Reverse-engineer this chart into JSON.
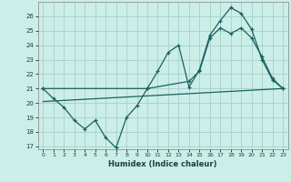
{
  "xlabel": "Humidex (Indice chaleur)",
  "bg_color": "#cceee8",
  "grid_color": "#aad4cc",
  "line_color": "#1a6060",
  "xlim": [
    -0.5,
    23.5
  ],
  "ylim": [
    16.8,
    27.0
  ],
  "xticks": [
    0,
    1,
    2,
    3,
    4,
    5,
    6,
    7,
    8,
    9,
    10,
    11,
    12,
    13,
    14,
    15,
    16,
    17,
    18,
    19,
    20,
    21,
    22,
    23
  ],
  "yticks": [
    17,
    18,
    19,
    20,
    21,
    22,
    23,
    24,
    25,
    26
  ],
  "line1_x": [
    0,
    1,
    2,
    3,
    4,
    5,
    6,
    7,
    8,
    9,
    10,
    11,
    12,
    13,
    14,
    15,
    16,
    17,
    18,
    19,
    20,
    21,
    22,
    23
  ],
  "line1_y": [
    21.0,
    20.3,
    19.7,
    18.8,
    18.2,
    18.8,
    17.6,
    16.9,
    19.0,
    19.8,
    21.0,
    22.2,
    23.5,
    24.0,
    21.1,
    22.3,
    24.7,
    25.7,
    26.6,
    26.2,
    25.1,
    23.0,
    21.6,
    21.0
  ],
  "line2_x": [
    0,
    10,
    14,
    15,
    16,
    17,
    18,
    19,
    20,
    21,
    22,
    23
  ],
  "line2_y": [
    21.0,
    21.0,
    21.5,
    22.2,
    24.5,
    25.2,
    24.8,
    25.2,
    24.5,
    23.2,
    21.7,
    21.0
  ],
  "line3_x": [
    0,
    23
  ],
  "line3_y": [
    20.1,
    21.0
  ]
}
